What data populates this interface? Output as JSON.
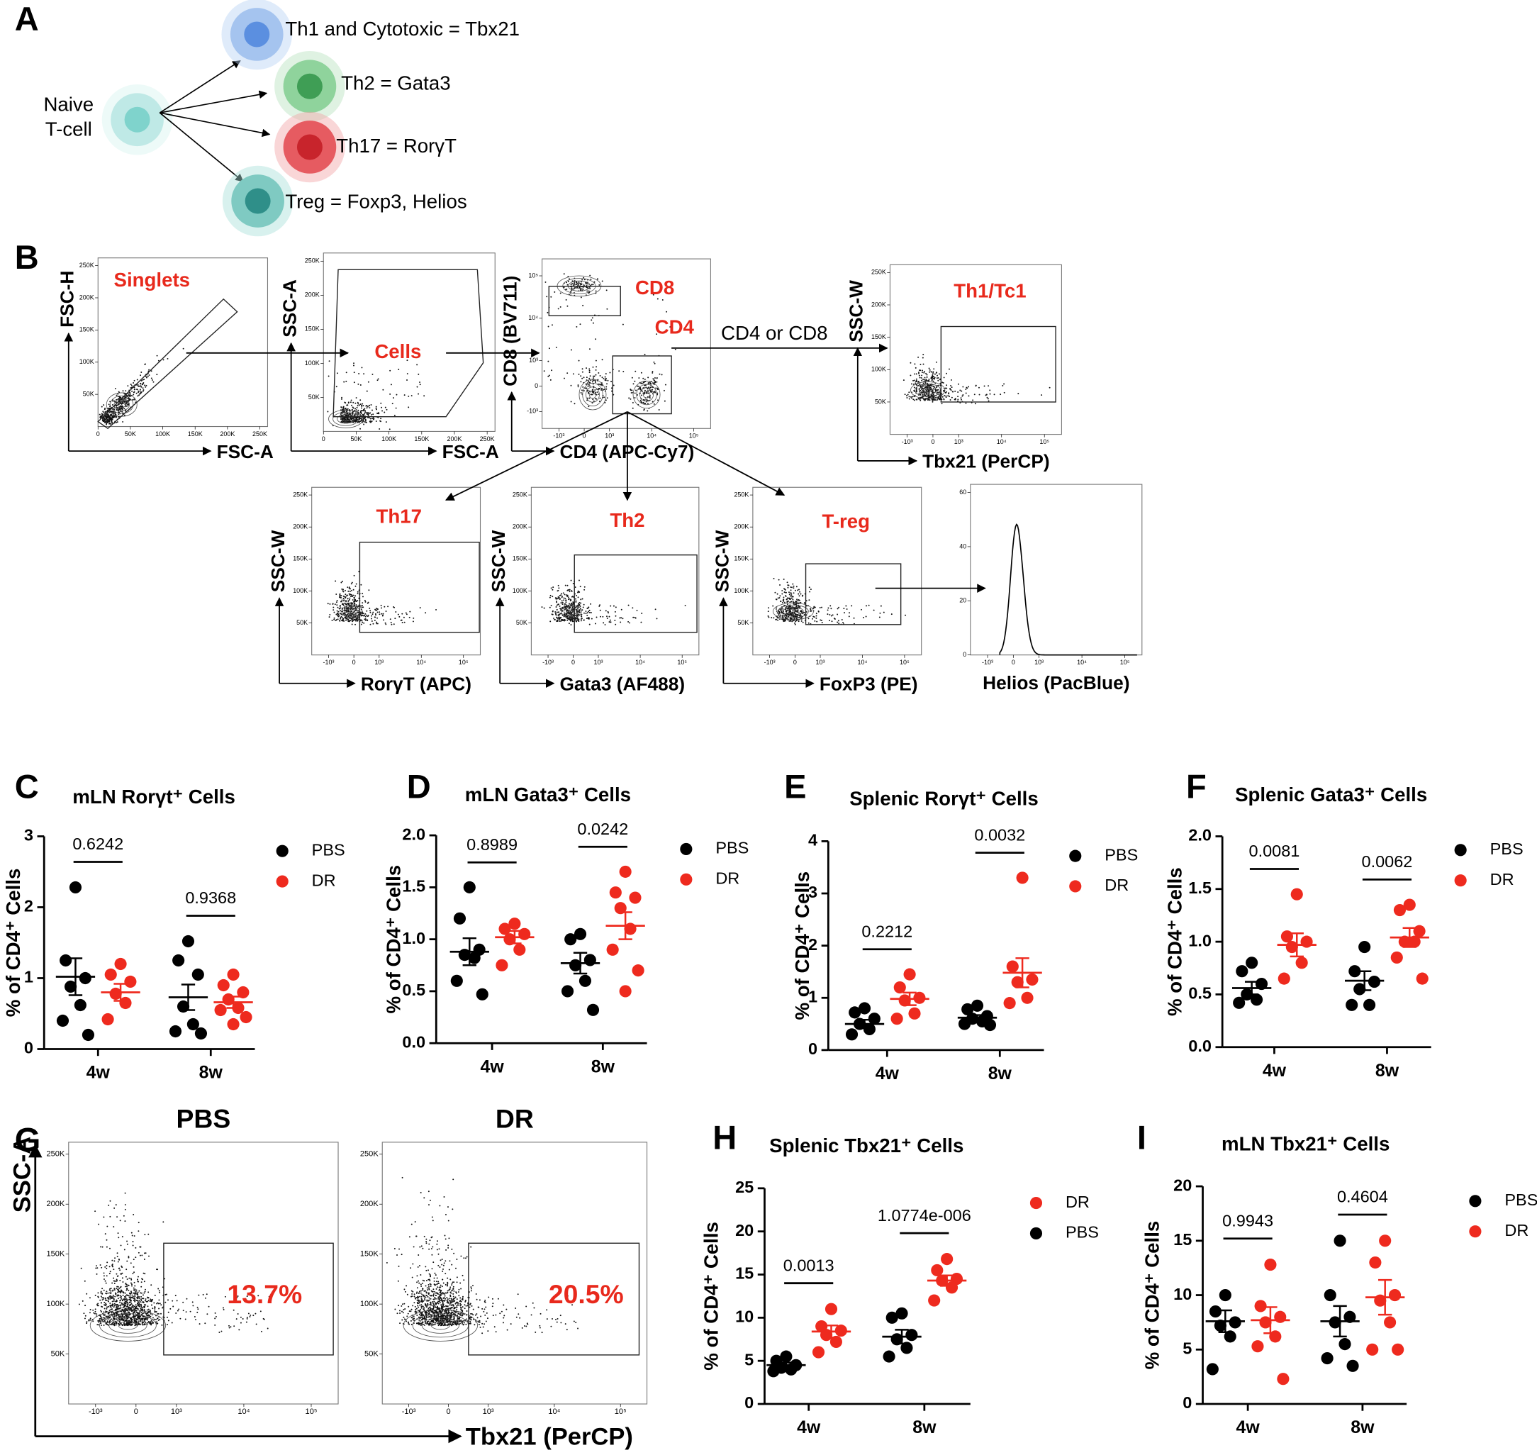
{
  "panel_letters": [
    "A",
    "B",
    "C",
    "D",
    "E",
    "F",
    "G",
    "H",
    "I"
  ],
  "diagram": {
    "source": [
      "Naive",
      "T-cell"
    ],
    "targets": [
      "Th1 and Cytotoxic = Tbx21",
      "Th2 = Gata3",
      "Th17 = RorγT",
      "Treg = Foxp3, Helios"
    ]
  },
  "gating": {
    "plots": [
      {
        "gates": [
          "Singlets"
        ],
        "y_label": "FSC-H",
        "x_label": "FSC-A"
      },
      {
        "gates": [
          "Cells"
        ],
        "y_label": "SSC-A",
        "x_label": "FSC-A"
      },
      {
        "gates": [
          "CD8",
          "CD4"
        ],
        "y_label": "CD8 (BV711)",
        "x_label": "CD4 (APC-Cy7)"
      },
      {
        "gates": [
          "Th1/Tc1"
        ],
        "y_label": "SSC-W",
        "x_label": "Tbx21 (PerCP)"
      },
      {
        "gates": [
          "Th17"
        ],
        "y_label": "SSC-W",
        "x_label": "RorγT (APC)"
      },
      {
        "gates": [
          "Th2"
        ],
        "y_label": "SSC-W",
        "x_label": "Gata3 (AF488)"
      },
      {
        "gates": [
          "T-reg"
        ],
        "y_label": "SSC-W",
        "x_label": "FoxP3 (PE)"
      },
      {
        "x_label": "Helios (PacBlue)"
      }
    ],
    "arrow_label": "CD4 or CD8",
    "linear_ticks": [
      "0",
      "50K",
      "100K",
      "150K",
      "200K",
      "250K"
    ],
    "log_ticks": [
      "-10³",
      "0",
      "10³",
      "10⁴",
      "10⁵"
    ],
    "histogram_ticks": [
      0,
      20,
      40,
      60
    ]
  },
  "comparison": {
    "y_label": "SSC-A",
    "x_label": "Tbx21 (PerCP)",
    "plots": [
      {
        "title": "PBS",
        "gate_value": "13.7%"
      },
      {
        "title": "DR",
        "gate_value": "20.5%"
      }
    ]
  },
  "chart_data": [
    {
      "type": "dot",
      "title": "mLN Rorγt⁺ Cells",
      "y_label": "% of CD4⁺ Cells",
      "categories": [
        "4w",
        "8w"
      ],
      "ylim": [
        0,
        3
      ],
      "yticks": [
        0,
        1,
        2,
        3
      ],
      "series": [
        {
          "name": "PBS",
          "color": "#000000",
          "values": [
            [
              2.28,
              1.25,
              1.0,
              0.88,
              0.62,
              0.4,
              0.2
            ],
            [
              1.52,
              1.25,
              1.05,
              0.6,
              0.35,
              0.25,
              0.22
            ]
          ],
          "mean": [
            1.02,
            0.73
          ],
          "sem": [
            0.26,
            0.18
          ]
        },
        {
          "name": "DR",
          "color": "#ee2a1e",
          "values": [
            [
              1.2,
              1.05,
              0.95,
              0.78,
              0.65,
              0.42
            ],
            [
              1.05,
              0.9,
              0.8,
              0.7,
              0.58,
              0.55,
              0.45,
              0.35
            ]
          ],
          "mean": [
            0.8,
            0.66
          ],
          "sem": [
            0.12,
            0.08
          ]
        }
      ],
      "p_values": [
        "0.6242",
        "0.9368"
      ]
    },
    {
      "type": "dot",
      "title": "mLN Gata3⁺ Cells",
      "y_label": "% of CD4⁺ Cells",
      "categories": [
        "4w",
        "8w"
      ],
      "ylim": [
        0,
        2
      ],
      "yticks": [
        {
          "value": 0,
          "label": "0.0"
        },
        {
          "value": 0.5,
          "label": "0.5"
        },
        {
          "value": 1,
          "label": "1.0"
        },
        {
          "value": 1.5,
          "label": "1.5"
        },
        {
          "value": 2,
          "label": "2.0"
        }
      ],
      "series": [
        {
          "name": "PBS",
          "color": "#000000",
          "values": [
            [
              1.5,
              1.2,
              0.9,
              0.85,
              0.82,
              0.6,
              0.47
            ],
            [
              1.05,
              1.0,
              0.8,
              0.75,
              0.6,
              0.5,
              0.32
            ]
          ],
          "mean": [
            0.88,
            0.77
          ],
          "sem": [
            0.13,
            0.1
          ]
        },
        {
          "name": "DR",
          "color": "#ee2a1e",
          "values": [
            [
              1.15,
              1.1,
              1.05,
              1.0,
              0.9,
              0.75
            ],
            [
              1.65,
              1.45,
              1.4,
              1.3,
              1.1,
              0.9,
              0.7,
              0.5
            ]
          ],
          "mean": [
            1.02,
            1.13
          ],
          "sem": [
            0.06,
            0.13
          ]
        }
      ],
      "p_values": [
        "0.8989",
        "0.0242"
      ]
    },
    {
      "type": "dot",
      "title": "Splenic Rorγt⁺ Cells",
      "y_label": "% of CD4⁺ Cells",
      "categories": [
        "4w",
        "8w"
      ],
      "ylim": [
        0,
        4
      ],
      "yticks": [
        0,
        1,
        2,
        3,
        4
      ],
      "series": [
        {
          "name": "PBS",
          "color": "#000000",
          "values": [
            [
              0.8,
              0.72,
              0.6,
              0.5,
              0.4,
              0.3
            ],
            [
              0.85,
              0.78,
              0.65,
              0.6,
              0.55,
              0.5,
              0.48
            ]
          ],
          "mean": [
            0.5,
            0.62
          ],
          "sem": [
            0.08,
            0.05
          ]
        },
        {
          "name": "DR",
          "color": "#ee2a1e",
          "values": [
            [
              1.45,
              1.2,
              1.0,
              0.95,
              0.7,
              0.6
            ],
            [
              3.3,
              1.6,
              1.35,
              1.3,
              1.0,
              0.9
            ]
          ],
          "mean": [
            0.98,
            1.48
          ],
          "sem": [
            0.12,
            0.28
          ]
        }
      ],
      "p_values": [
        "0.2212",
        "0.0032"
      ]
    },
    {
      "type": "dot",
      "title": "Splenic Gata3⁺ Cells",
      "y_label": "% of CD4⁺ Cells",
      "categories": [
        "4w",
        "8w"
      ],
      "ylim": [
        0,
        2
      ],
      "yticks": [
        {
          "value": 0,
          "label": "0.0"
        },
        {
          "value": 0.5,
          "label": "0.5"
        },
        {
          "value": 1,
          "label": "1.0"
        },
        {
          "value": 1.5,
          "label": "1.5"
        },
        {
          "value": 2,
          "label": "2.0"
        }
      ],
      "series": [
        {
          "name": "PBS",
          "color": "#000000",
          "values": [
            [
              0.8,
              0.72,
              0.6,
              0.5,
              0.45,
              0.42
            ],
            [
              0.95,
              0.72,
              0.62,
              0.55,
              0.4,
              0.4
            ]
          ],
          "mean": [
            0.56,
            0.63
          ],
          "sem": [
            0.06,
            0.09
          ]
        },
        {
          "name": "DR",
          "color": "#ee2a1e",
          "values": [
            [
              1.45,
              1.05,
              1.0,
              0.95,
              0.8,
              0.65
            ],
            [
              1.35,
              1.3,
              1.1,
              1.0,
              1.0,
              0.85,
              0.65
            ]
          ],
          "mean": [
            0.97,
            1.04
          ],
          "sem": [
            0.11,
            0.09
          ]
        }
      ],
      "p_values": [
        "0.0081",
        "0.0062"
      ]
    },
    {
      "type": "dot",
      "title": "Splenic Tbx21⁺ Cells",
      "y_label": "% of CD4⁺ Cells",
      "categories": [
        "4w",
        "8w"
      ],
      "ylim": [
        0,
        25
      ],
      "yticks": [
        0,
        5,
        10,
        15,
        20,
        25
      ],
      "legend_order": [
        1,
        0
      ],
      "series": [
        {
          "name": "PBS",
          "color": "#000000",
          "values": [
            [
              5.5,
              5.0,
              4.5,
              4.2,
              4.0,
              3.8
            ],
            [
              10.5,
              10.0,
              8.0,
              7.5,
              6.5,
              5.5
            ]
          ],
          "mean": [
            4.5,
            7.8
          ],
          "sem": [
            0.3,
            0.8
          ]
        },
        {
          "name": "DR",
          "color": "#ee2a1e",
          "values": [
            [
              11.0,
              9.0,
              8.5,
              8.0,
              7.2,
              6.0
            ],
            [
              16.8,
              15.5,
              14.5,
              14.3,
              13.5,
              12.0
            ]
          ],
          "mean": [
            8.4,
            14.3
          ],
          "sem": [
            0.7,
            0.6
          ]
        }
      ],
      "p_values": [
        "0.0013",
        "1.0774e-006"
      ]
    },
    {
      "type": "dot",
      "title": "mLN Tbx21⁺ Cells",
      "y_label": "% of CD4⁺ Cells",
      "categories": [
        "4w",
        "8w"
      ],
      "ylim": [
        0,
        20
      ],
      "yticks": [
        0,
        5,
        10,
        15,
        20
      ],
      "series": [
        {
          "name": "PBS",
          "color": "#000000",
          "values": [
            [
              10.0,
              8.5,
              7.5,
              7.2,
              6.2,
              3.2
            ],
            [
              15.0,
              10.0,
              8.0,
              7.5,
              5.5,
              4.2,
              3.5
            ]
          ],
          "mean": [
            7.6,
            7.6
          ],
          "sem": [
            1.0,
            1.4
          ]
        },
        {
          "name": "DR",
          "color": "#ee2a1e",
          "values": [
            [
              12.8,
              9.0,
              8.0,
              7.5,
              6.2,
              5.3,
              2.3
            ],
            [
              15.0,
              13.0,
              10.0,
              9.5,
              7.5,
              5.0,
              5.0
            ]
          ],
          "mean": [
            7.7,
            9.8
          ],
          "sem": [
            1.2,
            1.6
          ]
        }
      ],
      "p_values": [
        "0.9943",
        "0.4604"
      ]
    }
  ]
}
